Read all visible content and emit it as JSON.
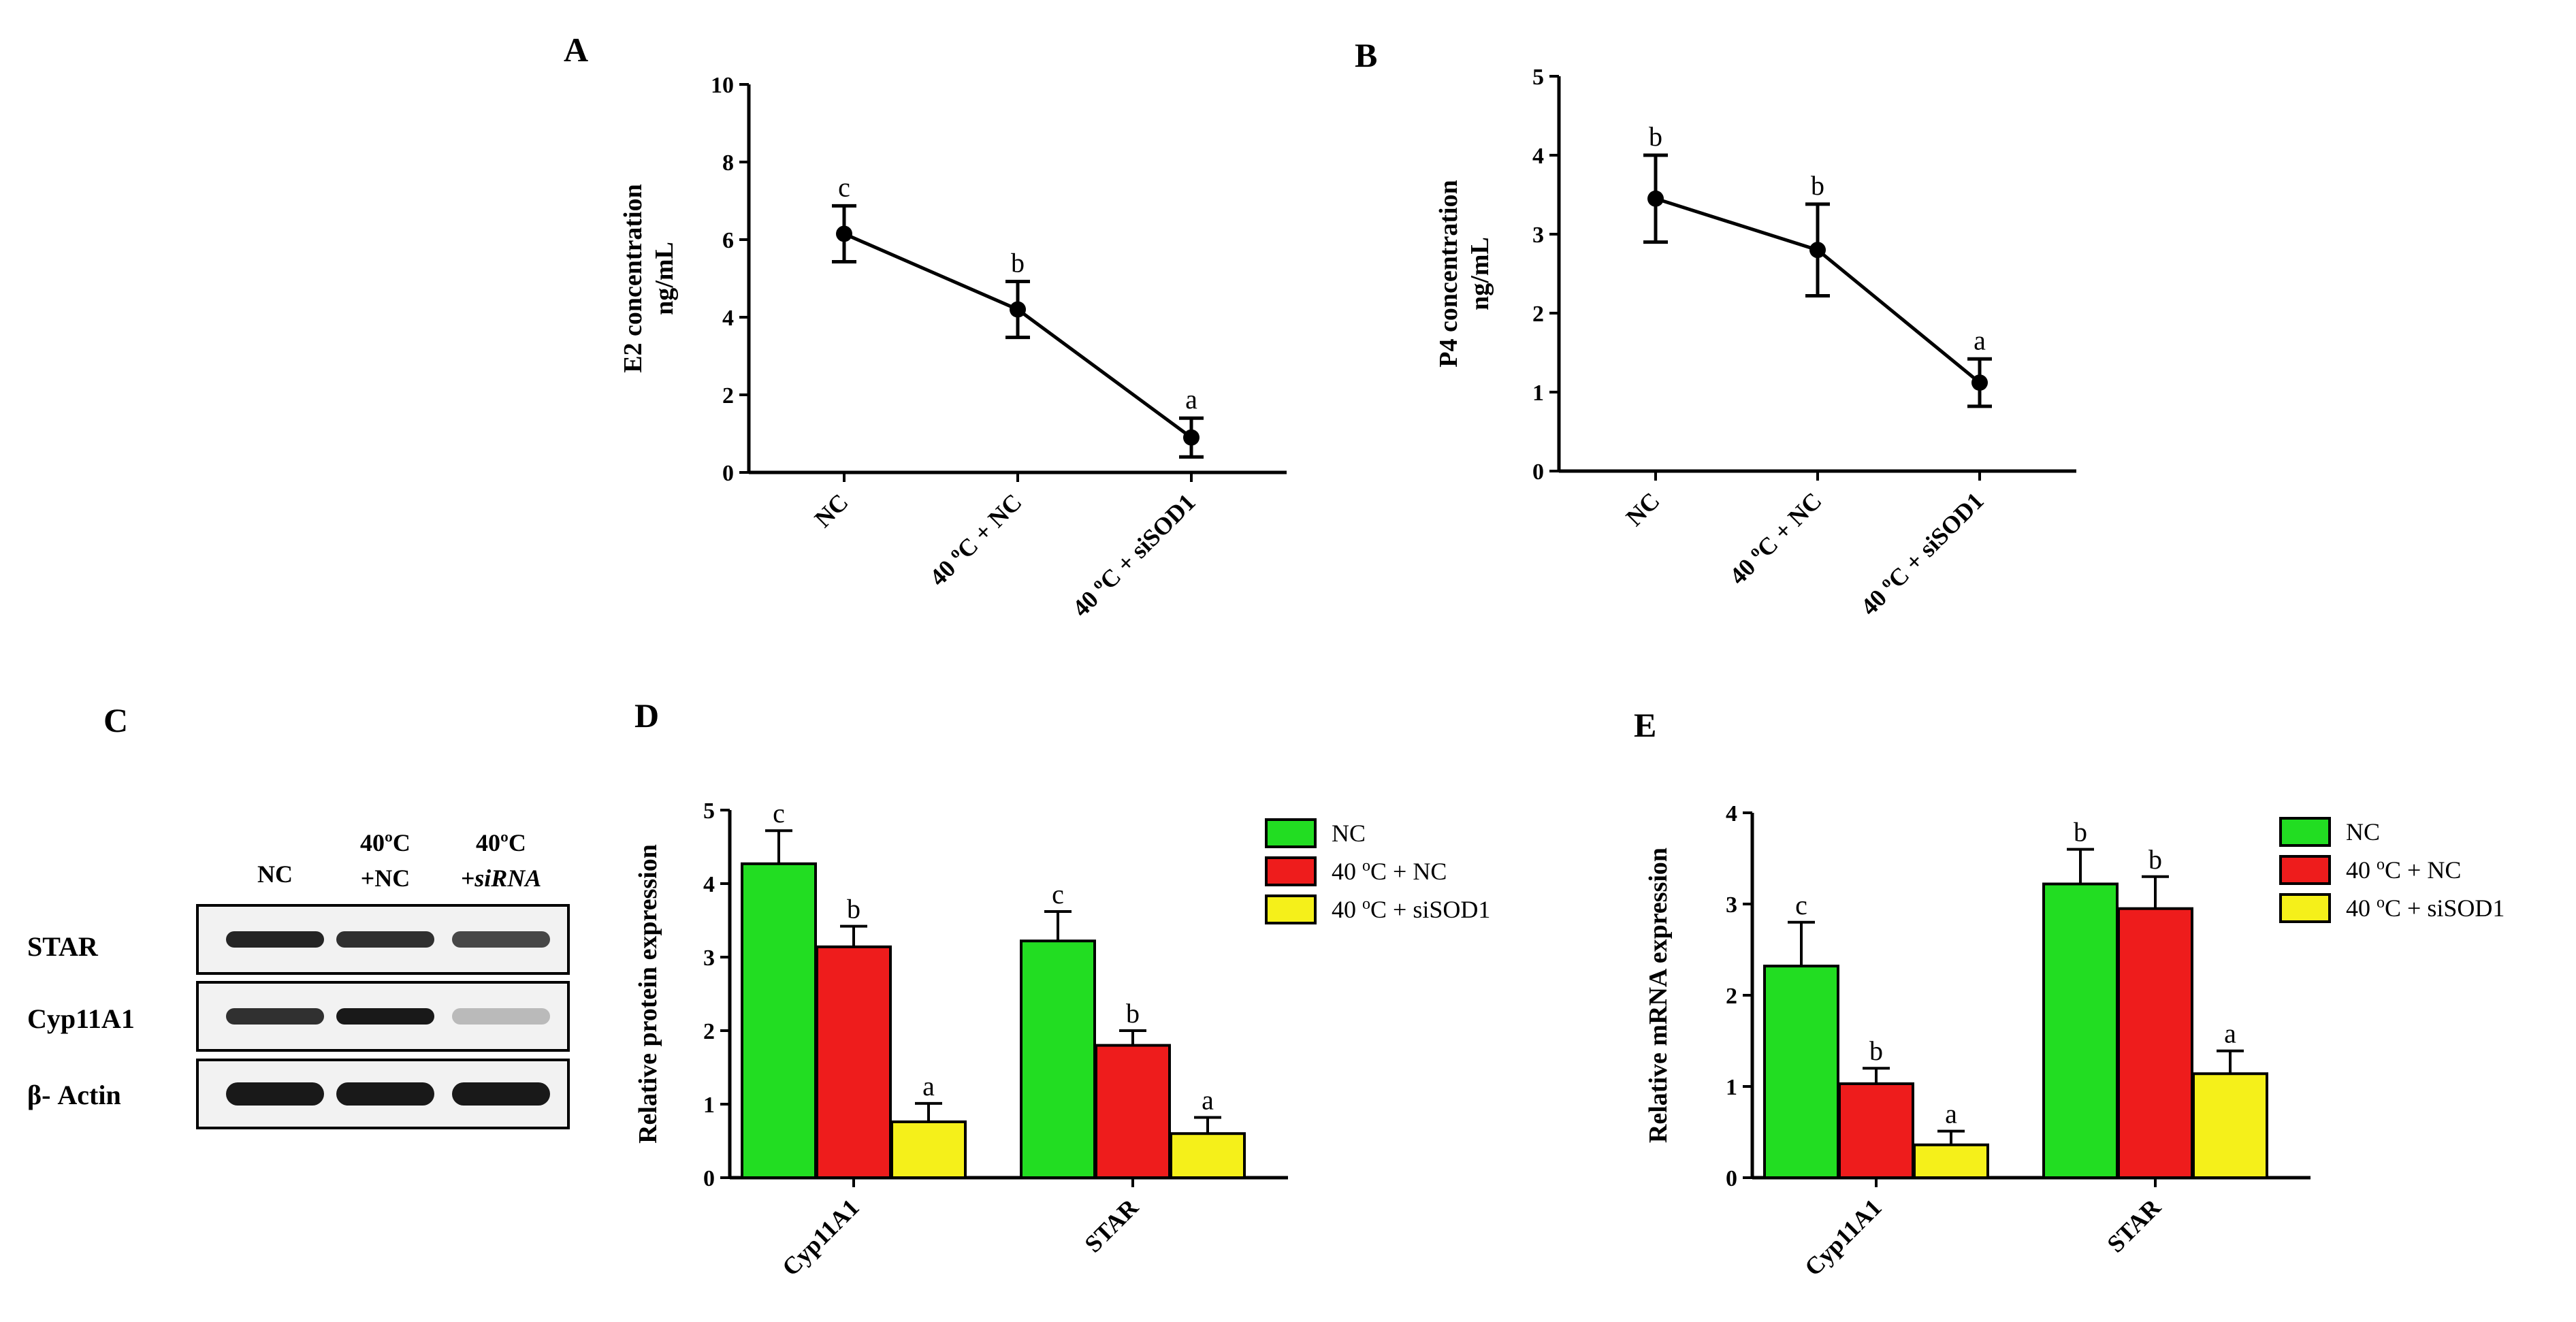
{
  "colors": {
    "NC": "#22dd22",
    "heat": "#ee1c1c",
    "siSOD1": "#f5f01a",
    "axis": "#000000"
  },
  "chart_data": [
    {
      "id": "A",
      "panel": "A",
      "type": "line",
      "categories": [
        "NC",
        "40 ºC + NC",
        "40 ºC + siSOD1"
      ],
      "values": [
        6.15,
        4.2,
        0.9
      ],
      "errors": [
        0.72,
        0.72,
        0.5
      ],
      "letters": [
        "c",
        "b",
        "a"
      ],
      "ylabel_line1": "E2 concentration",
      "ylabel_line2": "ng/mL",
      "ylim": [
        0,
        10
      ],
      "yticks": [
        "0",
        "2",
        "4",
        "6",
        "8",
        "10"
      ]
    },
    {
      "id": "B",
      "panel": "B",
      "type": "line",
      "categories": [
        "NC",
        "40 ºC + NC",
        "40 ºC + siSOD1"
      ],
      "values": [
        3.45,
        2.8,
        1.12
      ],
      "errors": [
        0.55,
        0.58,
        0.3
      ],
      "letters": [
        "b",
        "b",
        "a"
      ],
      "ylabel_line1": "P4 concentration",
      "ylabel_line2": "ng/mL",
      "ylim": [
        0,
        5
      ],
      "yticks": [
        "0",
        "1",
        "2",
        "3",
        "4",
        "5"
      ]
    },
    {
      "id": "D",
      "panel": "D",
      "type": "bar",
      "categories": [
        "Cyp11A1",
        "STAR"
      ],
      "series": [
        {
          "name": "NC",
          "values": [
            4.27,
            3.22
          ],
          "errors": [
            0.45,
            0.4
          ],
          "letters": [
            "c",
            "c"
          ]
        },
        {
          "name": "40 ºC + NC",
          "values": [
            3.14,
            1.8
          ],
          "errors": [
            0.28,
            0.2
          ],
          "letters": [
            "b",
            "b"
          ]
        },
        {
          "name": " 40 ºC + siSOD1",
          "values": [
            0.76,
            0.6
          ],
          "errors": [
            0.25,
            0.22
          ],
          "letters": [
            "a",
            "a"
          ]
        }
      ],
      "ylabel": "Relative protein expression",
      "ylim": [
        0,
        5
      ],
      "yticks": [
        "0",
        "1",
        "2",
        "3",
        "4",
        "5"
      ],
      "legend_position": "top-right"
    },
    {
      "id": "E",
      "panel": "E",
      "type": "bar",
      "categories": [
        "Cyp11A1",
        "STAR"
      ],
      "series": [
        {
          "name": "NC",
          "values": [
            2.32,
            3.22
          ],
          "errors": [
            0.48,
            0.38
          ],
          "letters": [
            "c",
            "b"
          ]
        },
        {
          "name": "40 ºC + NC",
          "values": [
            1.03,
            2.95
          ],
          "errors": [
            0.17,
            0.35
          ],
          "letters": [
            "b",
            "b"
          ]
        },
        {
          "name": " 40 ºC + siSOD1",
          "values": [
            0.36,
            1.14
          ],
          "errors": [
            0.15,
            0.25
          ],
          "letters": [
            "a",
            "a"
          ]
        }
      ],
      "ylabel": "Relative mRNA expression",
      "ylim": [
        0,
        4
      ],
      "yticks": [
        "0",
        "1",
        "2",
        "3",
        "4"
      ],
      "legend_position": "top-right"
    }
  ],
  "western": {
    "panel": "C",
    "lanes": [
      {
        "line1": "NC",
        "line2": ""
      },
      {
        "line1": "40ºC",
        "line2": "+NC"
      },
      {
        "line1": "40ºC",
        "line2": "+siRNA"
      }
    ],
    "rows": [
      {
        "label": "STAR",
        "band_intensity": [
          0.95,
          0.9,
          0.8
        ]
      },
      {
        "label": "Cyp11A1",
        "band_intensity": [
          0.9,
          1.0,
          0.3
        ]
      },
      {
        "label": "β- Actin",
        "band_intensity": [
          1.0,
          1.0,
          1.0
        ]
      }
    ]
  }
}
